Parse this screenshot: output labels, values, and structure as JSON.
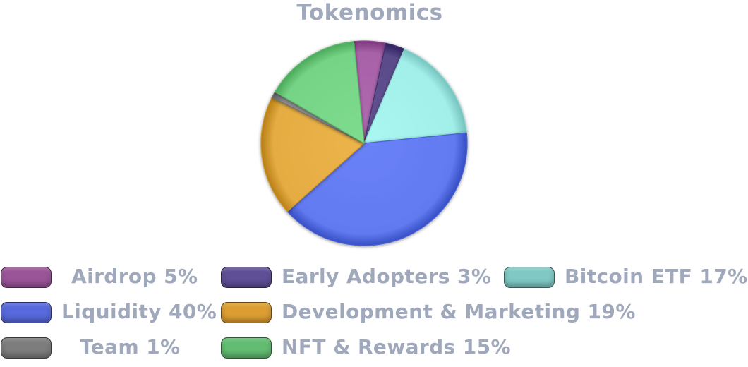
{
  "chart_data": {
    "type": "pie",
    "title": "Tokenomics",
    "slices": [
      {
        "label": "Airdrop 5%",
        "value": 5,
        "color": "#a862a8"
      },
      {
        "label": "Early Adopters 3%",
        "value": 3,
        "color": "#5a4b8a"
      },
      {
        "label": "Bitcoin ETF 17%",
        "value": 17,
        "color": "#a2efea"
      },
      {
        "label": "Liquidity 40%",
        "value": 40,
        "color": "#627af0"
      },
      {
        "label": "Development & Marketing 19%",
        "value": 19,
        "color": "#e4ac42"
      },
      {
        "label": "Team 1%",
        "value": 1,
        "color": "#8a8a8a"
      },
      {
        "label": "NFT & Rewards 15%",
        "value": 15,
        "color": "#76d486"
      }
    ],
    "legend": {
      "placement": "bottom",
      "swatch_colors": [
        "#9a5498",
        "#5e4f96",
        "#7fc8c4",
        "#5769dc",
        "#dc9e32",
        "#7d7d7d",
        "#62bd72"
      ]
    }
  }
}
